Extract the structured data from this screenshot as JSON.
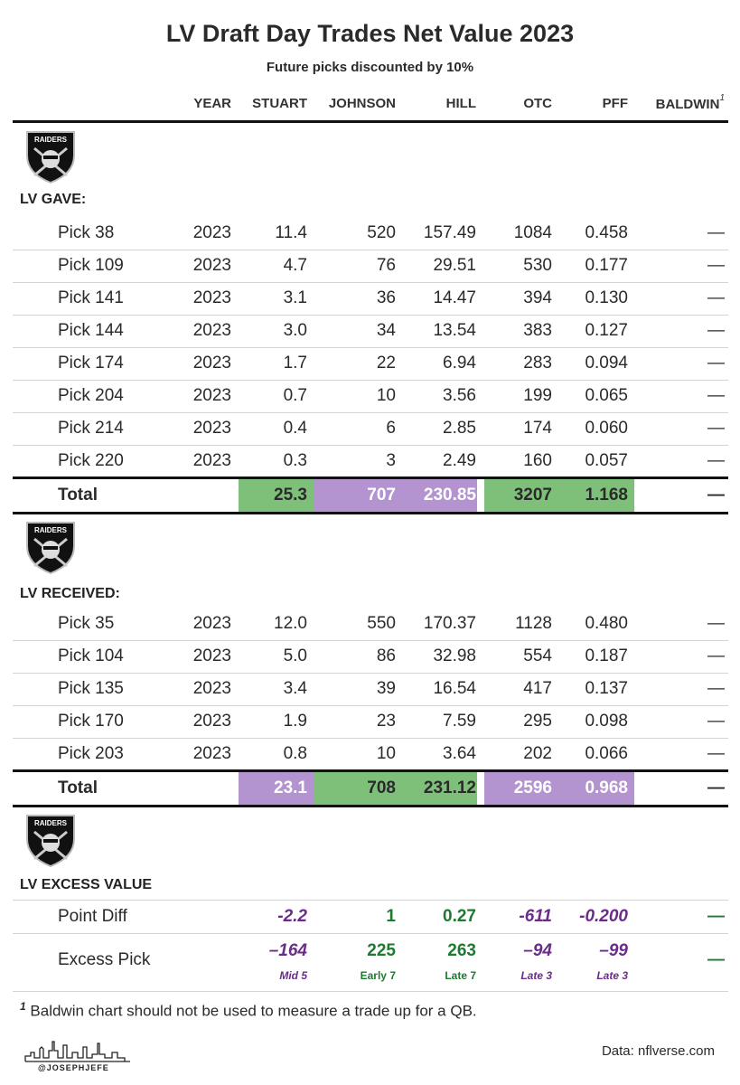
{
  "title": "LV Draft Day Trades Net Value 2023",
  "subtitle": "Future picks discounted by 10%",
  "columns": [
    "YEAR",
    "STUART",
    "JOHNSON",
    "HILL",
    "OTC",
    "PFF",
    "BALDWIN"
  ],
  "baldwin_sup": "1",
  "logo_text": "RAIDERS",
  "gave": {
    "label": "LV GAVE:",
    "rows": [
      {
        "name": "Pick 38",
        "year": "2023",
        "stuart": "11.4",
        "johnson": "520",
        "hill": "157.49",
        "otc": "1084",
        "pff": "0.458",
        "baldwin": "—"
      },
      {
        "name": "Pick 109",
        "year": "2023",
        "stuart": "4.7",
        "johnson": "76",
        "hill": "29.51",
        "otc": "530",
        "pff": "0.177",
        "baldwin": "—"
      },
      {
        "name": "Pick 141",
        "year": "2023",
        "stuart": "3.1",
        "johnson": "36",
        "hill": "14.47",
        "otc": "394",
        "pff": "0.130",
        "baldwin": "—"
      },
      {
        "name": "Pick 144",
        "year": "2023",
        "stuart": "3.0",
        "johnson": "34",
        "hill": "13.54",
        "otc": "383",
        "pff": "0.127",
        "baldwin": "—"
      },
      {
        "name": "Pick 174",
        "year": "2023",
        "stuart": "1.7",
        "johnson": "22",
        "hill": "6.94",
        "otc": "283",
        "pff": "0.094",
        "baldwin": "—"
      },
      {
        "name": "Pick 204",
        "year": "2023",
        "stuart": "0.7",
        "johnson": "10",
        "hill": "3.56",
        "otc": "199",
        "pff": "0.065",
        "baldwin": "—"
      },
      {
        "name": "Pick 214",
        "year": "2023",
        "stuart": "0.4",
        "johnson": "6",
        "hill": "2.85",
        "otc": "174",
        "pff": "0.060",
        "baldwin": "—"
      },
      {
        "name": "Pick 220",
        "year": "2023",
        "stuart": "0.3",
        "johnson": "3",
        "hill": "2.49",
        "otc": "160",
        "pff": "0.057",
        "baldwin": "—"
      }
    ],
    "total": {
      "name": "Total",
      "stuart": "25.3",
      "johnson": "707",
      "hill": "230.85",
      "otc": "3207",
      "pff": "1.168",
      "baldwin": "—"
    }
  },
  "received": {
    "label": "LV RECEIVED:",
    "rows": [
      {
        "name": "Pick 35",
        "year": "2023",
        "stuart": "12.0",
        "johnson": "550",
        "hill": "170.37",
        "otc": "1128",
        "pff": "0.480",
        "baldwin": "—"
      },
      {
        "name": "Pick 104",
        "year": "2023",
        "stuart": "5.0",
        "johnson": "86",
        "hill": "32.98",
        "otc": "554",
        "pff": "0.187",
        "baldwin": "—"
      },
      {
        "name": "Pick 135",
        "year": "2023",
        "stuart": "3.4",
        "johnson": "39",
        "hill": "16.54",
        "otc": "417",
        "pff": "0.137",
        "baldwin": "—"
      },
      {
        "name": "Pick 170",
        "year": "2023",
        "stuart": "1.9",
        "johnson": "23",
        "hill": "7.59",
        "otc": "295",
        "pff": "0.098",
        "baldwin": "—"
      },
      {
        "name": "Pick 203",
        "year": "2023",
        "stuart": "0.8",
        "johnson": "10",
        "hill": "3.64",
        "otc": "202",
        "pff": "0.066",
        "baldwin": "—"
      }
    ],
    "total": {
      "name": "Total",
      "stuart": "23.1",
      "johnson": "708",
      "hill": "231.12",
      "otc": "2596",
      "pff": "0.968",
      "baldwin": "—"
    }
  },
  "excess": {
    "label": "LV EXCESS VALUE",
    "point_diff": {
      "name": "Point Diff",
      "stuart": "-2.2",
      "johnson": "1",
      "hill": "0.27",
      "otc": "-611",
      "pff": "-0.200",
      "baldwin": "—"
    },
    "excess_pick": {
      "name": "Excess Pick",
      "stuart": "–164",
      "johnson": "225",
      "hill": "263",
      "otc": "–94",
      "pff": "–99",
      "baldwin": "—"
    },
    "tiers": {
      "stuart": "Mid 5",
      "johnson": "Early 7",
      "hill": "Late 7",
      "otc": "Late 3",
      "pff": "Late 3"
    }
  },
  "colors": {
    "green": "#7ec07a",
    "purple": "#b494d0",
    "green_text": "#1e7a30",
    "purple_text": "#6a2c8a"
  },
  "footnote": {
    "sup": "1",
    "text": " Baldwin chart should not be used to measure a trade up for a QB."
  },
  "credit": "@JOSEPHJEFE",
  "data_source": "Data: nflverse.com"
}
